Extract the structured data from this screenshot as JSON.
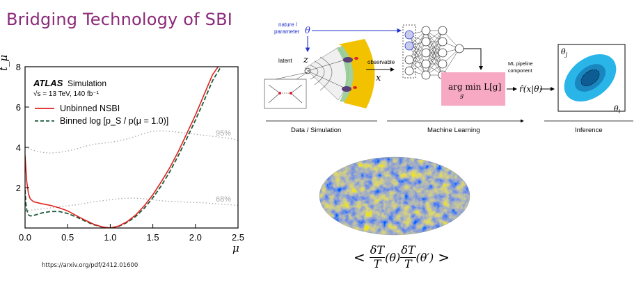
{
  "slide": {
    "title": "Bridging Technology of SBI",
    "reference_url": "https://arxiv.org/pdf/2412.01600"
  },
  "chart_data": {
    "type": "line",
    "xlabel": "μ",
    "ylabel": "t_μ",
    "xlim": [
      0.0,
      2.5
    ],
    "ylim": [
      0,
      8
    ],
    "xticks": [
      "0.0",
      "0.5",
      "1.0",
      "1.5",
      "2.0",
      "2.5"
    ],
    "yticks": [
      "2",
      "4",
      "6",
      "8"
    ],
    "experiment_label": "ATLAS",
    "experiment_tag": "Simulation",
    "energy_label": "√s = 13 TeV, 140 fb⁻¹",
    "legend_position": "top-left",
    "series": [
      {
        "name": "Unbinned NSBI",
        "color": "#e0201b",
        "style": "solid",
        "x": [
          0.0,
          0.01,
          0.02,
          0.04,
          0.06,
          0.1,
          0.2,
          0.3,
          0.4,
          0.5,
          0.6,
          0.7,
          0.8,
          0.9,
          1.0,
          1.1,
          1.2,
          1.3,
          1.4,
          1.5,
          1.6,
          1.7,
          1.8,
          1.9,
          2.0,
          2.1,
          2.2,
          2.3
        ],
        "values": [
          3.6,
          2.9,
          2.3,
          1.7,
          1.45,
          1.3,
          1.2,
          1.12,
          1.0,
          0.85,
          0.62,
          0.4,
          0.2,
          0.06,
          0.0,
          0.1,
          0.32,
          0.65,
          1.1,
          1.65,
          2.3,
          3.0,
          3.8,
          4.7,
          5.6,
          6.6,
          7.6,
          8.2
        ]
      },
      {
        "name": "Binned log [p_S / p(μ = 1.0)]",
        "color": "#1d5a3c",
        "style": "dashed",
        "x": [
          0.0,
          0.01,
          0.02,
          0.04,
          0.06,
          0.1,
          0.2,
          0.3,
          0.4,
          0.5,
          0.6,
          0.7,
          0.8,
          0.9,
          1.0,
          1.1,
          1.2,
          1.3,
          1.4,
          1.5,
          1.6,
          1.7,
          1.8,
          1.9,
          2.0,
          2.1,
          2.2,
          2.3,
          2.35
        ],
        "values": [
          1.9,
          1.2,
          0.9,
          0.65,
          0.6,
          0.62,
          0.75,
          0.82,
          0.82,
          0.72,
          0.55,
          0.35,
          0.17,
          0.05,
          0.0,
          0.08,
          0.28,
          0.58,
          0.98,
          1.5,
          2.1,
          2.8,
          3.6,
          4.45,
          5.35,
          6.3,
          7.3,
          8.0,
          8.3
        ]
      }
    ],
    "reference_lines": [
      {
        "label": "95%",
        "color": "#aaaaaa",
        "style": "dotted",
        "x": [
          0.0,
          0.1,
          0.2,
          0.3,
          0.4,
          0.5,
          0.6,
          0.7,
          0.8,
          0.9,
          1.0,
          1.1,
          1.2,
          1.3,
          1.4,
          1.5,
          1.6,
          1.7,
          1.8,
          1.9,
          2.0,
          2.1,
          2.2,
          2.3,
          2.4,
          2.5
        ],
        "values": [
          4.0,
          3.85,
          3.75,
          3.72,
          3.75,
          3.82,
          3.92,
          4.05,
          4.15,
          4.2,
          4.25,
          4.32,
          4.42,
          4.55,
          4.7,
          4.8,
          4.82,
          4.8,
          4.75,
          4.7,
          4.65,
          4.6,
          4.55,
          4.5,
          4.45,
          4.35
        ]
      },
      {
        "label": "68%",
        "color": "#aaaaaa",
        "style": "dotted",
        "x": [
          0.0,
          0.1,
          0.2,
          0.3,
          0.4,
          0.5,
          0.6,
          0.7,
          0.8,
          0.9,
          1.0,
          1.1,
          1.2,
          1.3,
          1.4,
          1.5,
          1.6,
          1.7,
          1.8,
          1.9,
          2.0,
          2.1,
          2.2,
          2.3,
          2.4,
          2.5
        ],
        "values": [
          0.85,
          0.9,
          0.95,
          1.0,
          1.05,
          1.1,
          1.15,
          1.22,
          1.3,
          1.35,
          1.4,
          1.45,
          1.48,
          1.48,
          1.45,
          1.4,
          1.35,
          1.32,
          1.3,
          1.28,
          1.27,
          1.25,
          1.22,
          1.18,
          1.15,
          1.12
        ]
      }
    ]
  },
  "diagram": {
    "nature_label": "nature /",
    "parameter_label": "parameter",
    "theta_symbol": "θ",
    "latent_label": "latent",
    "latent_symbol": "z",
    "observable_label": "observable",
    "observable_symbol": "x",
    "argmin_text": "arg min L[g]",
    "argmin_sub": "g",
    "estimator": "r̂(x|θ)",
    "pipeline_label_line1": "ML pipeline",
    "pipeline_label_line2": "component",
    "theta_j": "θ",
    "theta_j_sub": "j",
    "theta_i": "θ",
    "theta_i_sub": "i",
    "section_data": "Data / Simulation",
    "section_ml": "Machine Learning",
    "section_inference": "Inference"
  },
  "cmb": {
    "formula_open": "<",
    "numerator": "δT",
    "denominator": "T",
    "arg1": "(θ)",
    "arg2": "(θ′)",
    "formula_close": ">"
  },
  "colors": {
    "title": "#8b2a78",
    "theta_blue": "#2233cc",
    "argmin_box": "#f7a9c4",
    "inference_outer": "#29b5e8",
    "inference_inner": "#1a86c0"
  }
}
